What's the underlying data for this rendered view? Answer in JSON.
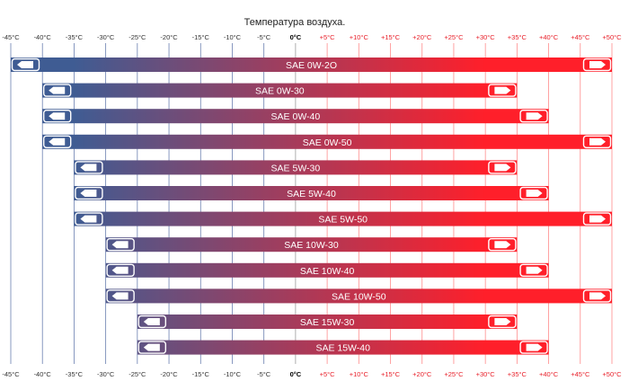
{
  "chart_data": {
    "type": "range-bar",
    "title": "Температура воздуха.",
    "axis": {
      "min": -45,
      "max": 50,
      "step": 5,
      "tick_labels": [
        "-45°C",
        "-40°C",
        "-35°C",
        "-30°C",
        "-25°C",
        "-20°C",
        "-15°C",
        "-10°C",
        "-5°C",
        "0°C",
        "+5°C",
        "+10°C",
        "+15°C",
        "+20°C",
        "+25°C",
        "+30°C",
        "+35°C",
        "+40°C",
        "+45°C",
        "+50°C"
      ]
    },
    "colors": {
      "cold": "#3f5c93",
      "hot": "#ff1f2a",
      "cold_label": "#333333",
      "zero_label": "#000000",
      "hot_label": "#e8202a",
      "cold_grid": "#6a7fb0",
      "hot_grid": "#ff8c8c",
      "arrow_fill": "#ffffff"
    },
    "series": [
      {
        "name": "SAE 0W-2O",
        "min": -45,
        "max": 50
      },
      {
        "name": "SAE 0W-30",
        "min": -40,
        "max": 35
      },
      {
        "name": "SAE 0W-40",
        "min": -40,
        "max": 40
      },
      {
        "name": "SAE 0W-50",
        "min": -40,
        "max": 50
      },
      {
        "name": "SAE 5W-30",
        "min": -35,
        "max": 35
      },
      {
        "name": "SAE 5W-40",
        "min": -35,
        "max": 40
      },
      {
        "name": "SAE 5W-50",
        "min": -35,
        "max": 50
      },
      {
        "name": "SAE 10W-30",
        "min": -30,
        "max": 35
      },
      {
        "name": "SAE 10W-40",
        "min": -30,
        "max": 40
      },
      {
        "name": "SAE 10W-50",
        "min": -30,
        "max": 50
      },
      {
        "name": "SAE 15W-30",
        "min": -25,
        "max": 35
      },
      {
        "name": "SAE 15W-40",
        "min": -25,
        "max": 40
      }
    ]
  }
}
